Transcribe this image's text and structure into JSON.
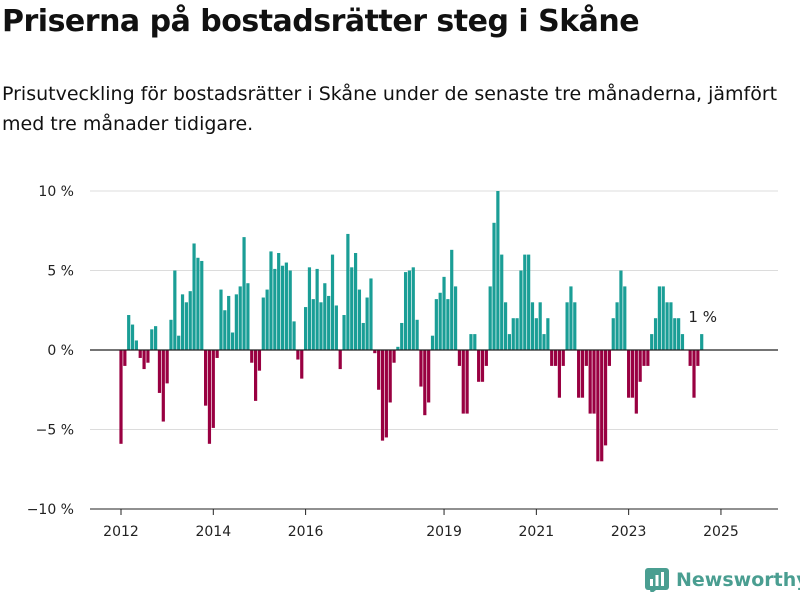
{
  "title": "Priserna på bostadsrätter steg i Skåne",
  "subtitle": "Prisutveckling för bostadsrätter i Skåne under de senaste tre månaderna, jämfört med tre månader tidigare.",
  "brand": {
    "name": "Newsworthy",
    "icon": "newsworthy-logo-icon",
    "color": "#4a9e91"
  },
  "chart_data": {
    "type": "bar",
    "title": "Priserna på bostadsrätter steg i Skåne",
    "subtitle": "Prisutveckling för bostadsrätter i Skåne under de senaste tre månaderna, jämfört med tre månader tidigare.",
    "xlabel": "",
    "ylabel": "",
    "ylim": [
      -10,
      10
    ],
    "yticks": [
      10,
      5,
      0,
      -5,
      -10
    ],
    "ytick_labels": [
      "10 %",
      "5 %",
      "0 %",
      "−5 %",
      "−10 %"
    ],
    "xticks": [
      2012,
      2014,
      2016,
      2019,
      2021,
      2023,
      2025
    ],
    "xtick_labels": [
      "2012",
      "2014",
      "2016",
      "2019",
      "2021",
      "2023",
      "2025"
    ],
    "x_start": 2012.0,
    "x_step_years": 0.08333,
    "grid": "horizontal",
    "colors": {
      "positive": "#1a9e96",
      "negative": "#990041"
    },
    "annotation": {
      "text": "1 %",
      "target": "last"
    },
    "values": [
      -5.9,
      -1.0,
      2.2,
      1.6,
      0.6,
      -0.5,
      -1.2,
      -0.8,
      1.3,
      1.5,
      -2.7,
      -4.5,
      -2.1,
      1.9,
      5.0,
      0.9,
      3.5,
      3.0,
      3.7,
      6.7,
      5.8,
      5.6,
      -3.5,
      -5.9,
      -4.9,
      -0.5,
      3.8,
      2.5,
      3.4,
      1.1,
      3.5,
      4.0,
      7.1,
      4.2,
      -0.8,
      -3.2,
      -1.3,
      3.3,
      3.8,
      6.2,
      5.1,
      6.1,
      5.3,
      5.5,
      5.0,
      1.8,
      -0.6,
      -1.8,
      2.7,
      5.2,
      3.2,
      5.1,
      3.0,
      4.2,
      3.4,
      6.0,
      2.8,
      -1.2,
      2.2,
      7.3,
      5.2,
      6.1,
      3.8,
      1.7,
      3.3,
      4.5,
      -0.2,
      -2.5,
      -5.7,
      -5.5,
      -3.3,
      -0.8,
      0.2,
      1.7,
      4.9,
      5.0,
      5.2,
      1.9,
      -2.3,
      -4.1,
      -3.3,
      0.9,
      3.2,
      3.6,
      4.6,
      3.2,
      6.3,
      4.0,
      -1.0,
      -4.0,
      -4.0,
      1.0,
      1.0,
      -2.0,
      -2.0,
      -1.0,
      4.0,
      8.0,
      10.0,
      6.0,
      3.0,
      1.0,
      2.0,
      2.0,
      5.0,
      6.0,
      6.0,
      3.0,
      2.0,
      3.0,
      1.0,
      2.0,
      -1.0,
      -1.0,
      -3.0,
      -1.0,
      3.0,
      4.0,
      3.0,
      -3.0,
      -3.0,
      -1.0,
      -4.0,
      -4.0,
      -7.0,
      -7.0,
      -6.0,
      -1.0,
      2.0,
      3.0,
      5.0,
      4.0,
      -3.0,
      -3.0,
      -4.0,
      -2.0,
      -1.0,
      -1.0,
      1.0,
      2.0,
      4.0,
      4.0,
      3.0,
      3.0,
      2.0,
      2.0,
      1.0,
      0.0,
      -1.0,
      -3.0,
      -1.0,
      1.0
    ]
  }
}
